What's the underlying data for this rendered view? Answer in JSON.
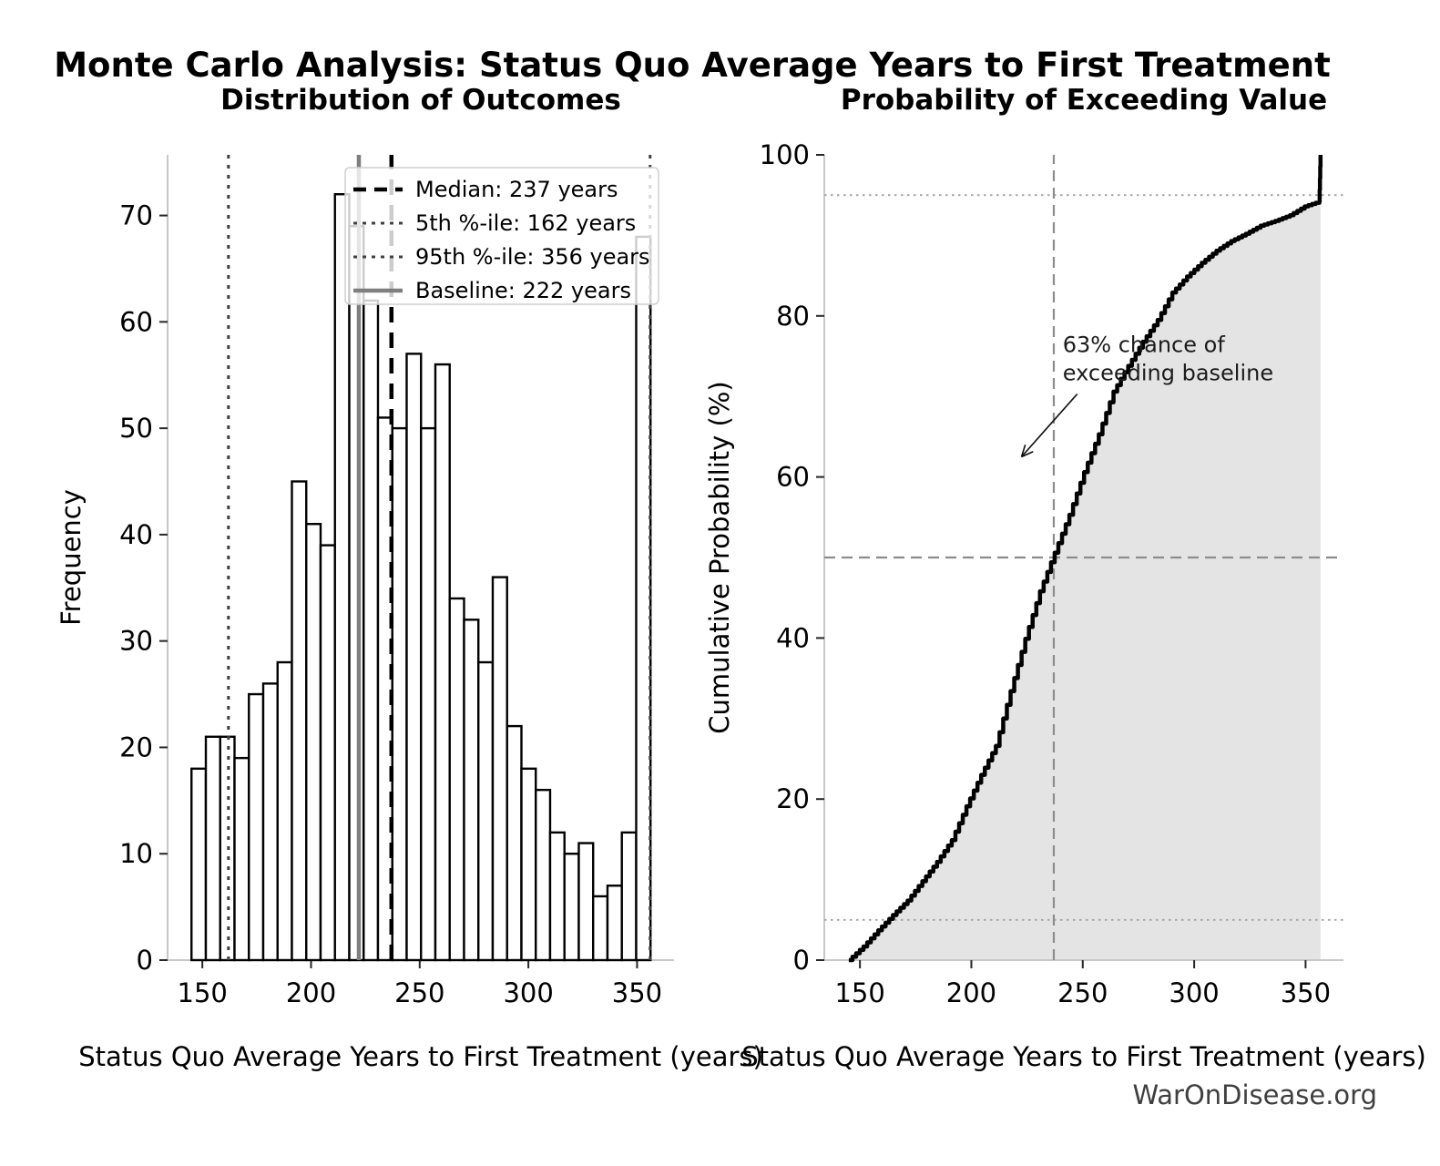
{
  "page": {
    "title": "Monte Carlo Analysis: Status Quo Average Years to First Treatment",
    "footer": "WarOnDisease.org",
    "background": "#ffffff"
  },
  "colors": {
    "bar_fill": "#ffffff",
    "bar_edge": "#000000",
    "median_line": "#000000",
    "percentile_line": "#404040",
    "baseline_line": "#7f7f7f",
    "cdf_line": "#000000",
    "cdf_fill": "#e4e4e4",
    "ref_dashed": "#8c8c8c",
    "ref_dotted": "#a3a3a3",
    "spine": "#c8c8c8",
    "tick": "#262626",
    "legend_border": "#cfcfcf",
    "legend_bg": "rgba(255,255,255,0.8)"
  },
  "chart_data": [
    {
      "type": "bar",
      "subtype": "histogram",
      "title": "Distribution of Outcomes",
      "xlabel": "Status Quo Average Years to First Treatment (years)",
      "ylabel": "Frequency",
      "bin_start": 145,
      "bin_width": 6.6,
      "counts": [
        18,
        21,
        21,
        19,
        25,
        26,
        28,
        45,
        41,
        39,
        72,
        69,
        62,
        51,
        50,
        57,
        50,
        56,
        34,
        32,
        28,
        36,
        22,
        18,
        16,
        12,
        10,
        11,
        6,
        7,
        12,
        68
      ],
      "xlim": [
        134,
        367
      ],
      "ylim": [
        0,
        75.7
      ],
      "xticks": [
        150,
        200,
        250,
        300,
        350
      ],
      "yticks": [
        0,
        10,
        20,
        30,
        40,
        50,
        60,
        70
      ],
      "grid": false,
      "legend_position": "upper right",
      "vlines": [
        {
          "x": 237,
          "label": "Median: 237 years",
          "style": "dashed",
          "color": "#000000",
          "width": 4.5
        },
        {
          "x": 162,
          "label": "5th %-ile: 162 years",
          "style": "dotted",
          "color": "#404040",
          "width": 3
        },
        {
          "x": 356,
          "label": "95th %-ile: 356 years",
          "style": "dotted",
          "color": "#404040",
          "width": 3
        },
        {
          "x": 222,
          "label": "Baseline: 222 years",
          "style": "solid",
          "color": "#7f7f7f",
          "width": 4.5
        }
      ]
    },
    {
      "type": "line",
      "subtype": "ecdf",
      "title": "Probability of Exceeding Value",
      "xlabel": "Status Quo Average Years to First Treatment (years)",
      "ylabel": "Cumulative Probability (%)",
      "xlim": [
        134,
        367
      ],
      "ylim": [
        0,
        100
      ],
      "xticks": [
        150,
        200,
        250,
        300,
        350
      ],
      "yticks": [
        0,
        20,
        40,
        60,
        80,
        100
      ],
      "grid": false,
      "fill_under": true,
      "points": [
        [
          145,
          0
        ],
        [
          151.6,
          1.7
        ],
        [
          158.2,
          3.7
        ],
        [
          164.8,
          5.6
        ],
        [
          171.4,
          7.4
        ],
        [
          178,
          9.8
        ],
        [
          184.6,
          12.2
        ],
        [
          191.2,
          14.9
        ],
        [
          197.8,
          19.1
        ],
        [
          204.4,
          23.0
        ],
        [
          211,
          26.6
        ],
        [
          217.6,
          33.4
        ],
        [
          224.2,
          39.9
        ],
        [
          230.8,
          45.8
        ],
        [
          237.4,
          50.6
        ],
        [
          244,
          55.3
        ],
        [
          250.6,
          60.6
        ],
        [
          257.2,
          65.3
        ],
        [
          263.8,
          70.6
        ],
        [
          270.4,
          73.8
        ],
        [
          277,
          76.8
        ],
        [
          283.6,
          79.5
        ],
        [
          290.2,
          82.9
        ],
        [
          296.8,
          84.9
        ],
        [
          303.4,
          86.6
        ],
        [
          310,
          88.1
        ],
        [
          316.6,
          89.3
        ],
        [
          323.2,
          90.2
        ],
        [
          329.8,
          91.2
        ],
        [
          336.4,
          91.8
        ],
        [
          343,
          92.5
        ],
        [
          349.6,
          93.6
        ],
        [
          356.2,
          94.2
        ],
        [
          356.7,
          100
        ]
      ],
      "hlines": [
        {
          "y": 5,
          "style": "dotted"
        },
        {
          "y": 50,
          "style": "dashed"
        },
        {
          "y": 95,
          "style": "dotted"
        }
      ],
      "vlines": [
        {
          "x": 237,
          "style": "dashed"
        }
      ],
      "annotation": {
        "lines": [
          "63% chance of",
          "exceeding baseline"
        ],
        "text_x": 241,
        "text_y": 75.5,
        "arrow_from_x": 247.5,
        "arrow_from_y": 70.3,
        "arrow_to_x": 222.5,
        "arrow_to_y": 62.5
      }
    }
  ]
}
